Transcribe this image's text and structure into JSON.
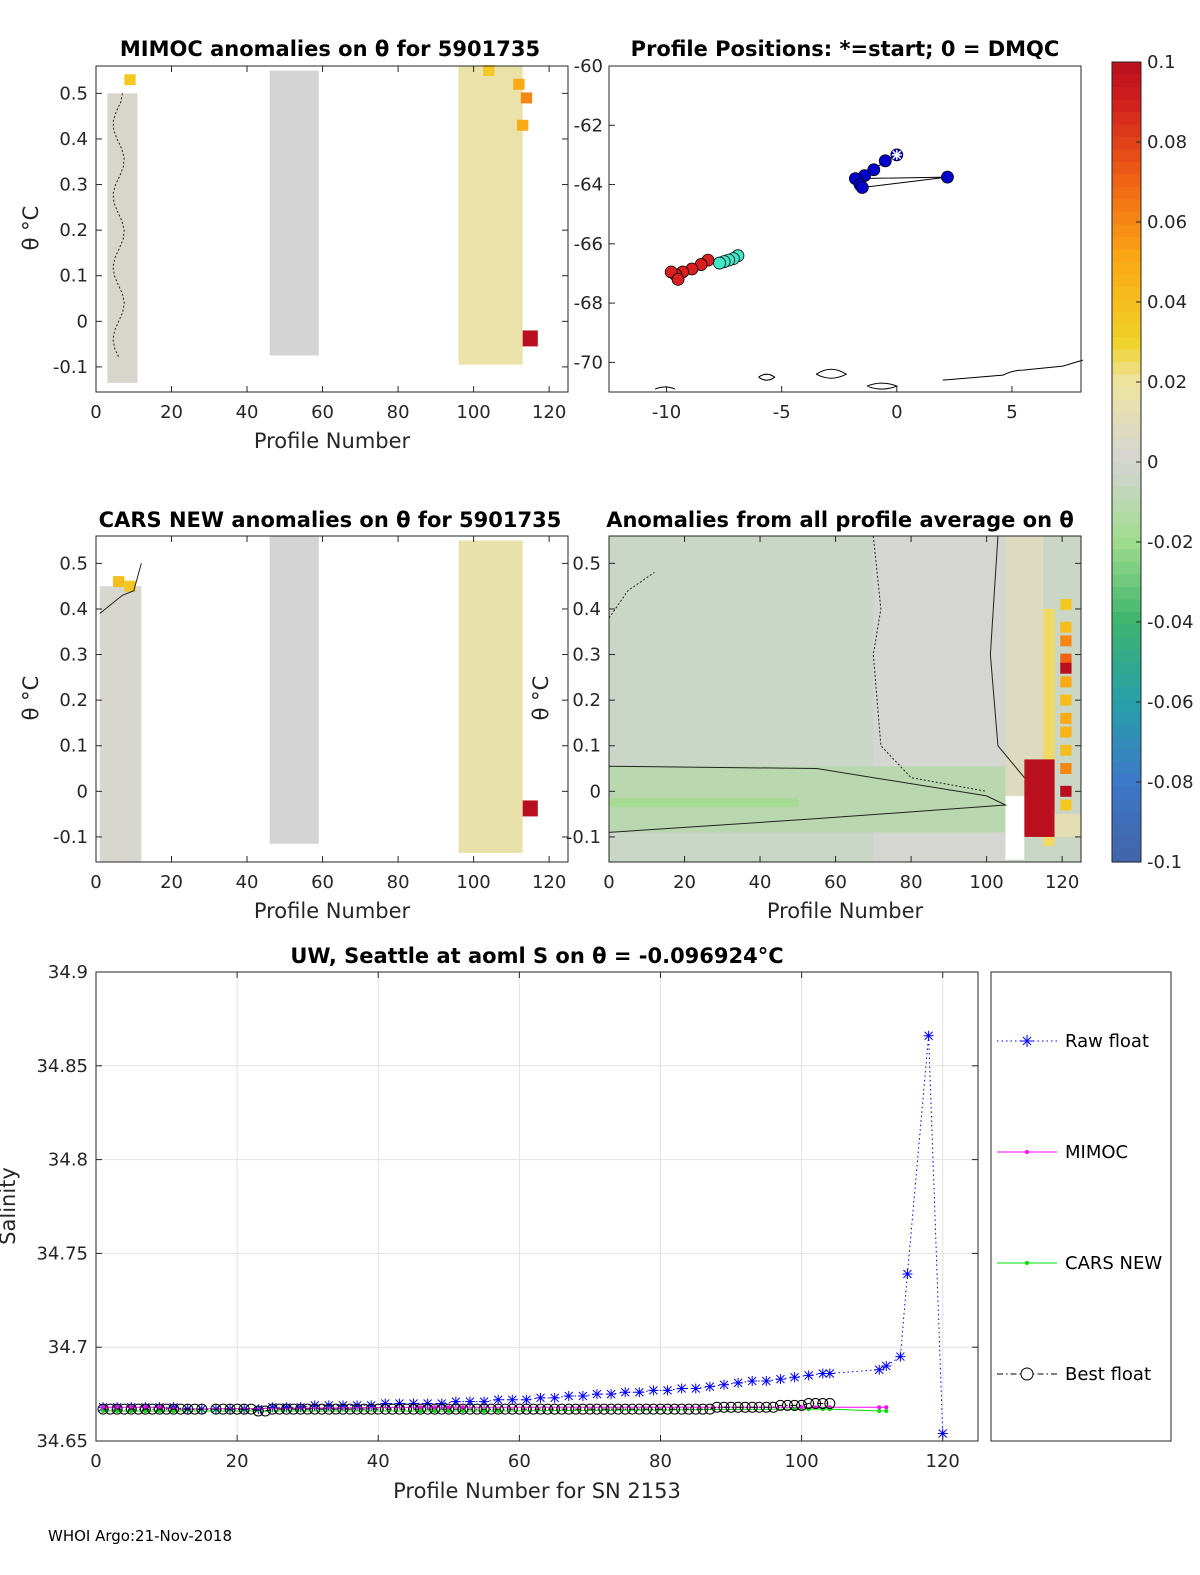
{
  "footer": "WHOI Argo:21-Nov-2018",
  "colors": {
    "neutral_gray": "#d4d4d4",
    "pale_yellow": "#eee6a6",
    "pale_green": "#d9e5c3",
    "green": "#b3e3a3",
    "dark_red": "#b8101e",
    "raw_float": "#0000ff",
    "mimoc": "#ff00ff",
    "cars_new": "#00dd00",
    "best_float": "#000000"
  },
  "chart_data": [
    {
      "id": "mimoc",
      "type": "heatmap",
      "title": "MIMOC anomalies on θ  for 5901735",
      "xlabel": "Profile Number",
      "ylabel": "θ °C",
      "xlim": [
        0,
        125
      ],
      "ylim": [
        -0.155,
        0.56
      ],
      "xticks": [
        "0",
        "20",
        "40",
        "60",
        "80",
        "100",
        "120"
      ],
      "yticks": [
        "-0.1",
        "0",
        "0.1",
        "0.2",
        "0.3",
        "0.4",
        "0.5"
      ],
      "xtick_values": [
        0,
        20,
        40,
        60,
        80,
        100,
        120
      ],
      "ytick_values": [
        -0.1,
        0,
        0.1,
        0.2,
        0.3,
        0.4,
        0.5
      ],
      "regions": [
        {
          "x": [
            3,
            11
          ],
          "y": [
            -0.135,
            0.5
          ],
          "v": 0.003
        },
        {
          "x": [
            46,
            59
          ],
          "y": [
            -0.075,
            0.55
          ],
          "v": 0.0
        },
        {
          "x": [
            96,
            113
          ],
          "y": [
            -0.095,
            0.56
          ],
          "v": 0.017
        },
        {
          "x": [
            113,
            117
          ],
          "y": [
            -0.055,
            -0.02
          ],
          "v": 0.1
        }
      ],
      "hot_cells": [
        {
          "x": 112,
          "y": 0.52,
          "v": 0.05
        },
        {
          "x": 114,
          "y": 0.49,
          "v": 0.06
        },
        {
          "x": 113,
          "y": 0.43,
          "v": 0.05
        },
        {
          "x": 104,
          "y": 0.55,
          "v": 0.035
        },
        {
          "x": 9,
          "y": 0.53,
          "v": 0.035
        }
      ]
    },
    {
      "id": "positions",
      "type": "scatter",
      "title": "Profile Positions: *=start; 0 = DMQC",
      "xlim": [
        -12.5,
        8
      ],
      "ylim": [
        -71,
        -60
      ],
      "xticks": [
        "-10",
        "-5",
        "0",
        "5"
      ],
      "yticks": [
        "-60",
        "-62",
        "-64",
        "-66",
        "-68",
        "-70"
      ],
      "xtick_values": [
        -10,
        -5,
        0,
        5
      ],
      "ytick_values": [
        -60,
        -62,
        -64,
        -66,
        -68,
        -70
      ],
      "clusters": [
        {
          "color": "#0000cc",
          "points": [
            [
              0,
              -63.0
            ],
            [
              -0.5,
              -63.2
            ],
            [
              -1.0,
              -63.5
            ],
            [
              -1.4,
              -63.7
            ],
            [
              -1.8,
              -63.8
            ],
            [
              -1.6,
              -64.0
            ],
            [
              -1.5,
              -64.1
            ],
            [
              2.2,
              -63.75
            ]
          ]
        },
        {
          "color": "#44e6c8",
          "points": [
            [
              -6.9,
              -66.4
            ],
            [
              -7.1,
              -66.5
            ],
            [
              -7.3,
              -66.55
            ],
            [
              -7.5,
              -66.6
            ],
            [
              -7.7,
              -66.65
            ]
          ]
        },
        {
          "color": "#d82020",
          "points": [
            [
              -8.2,
              -66.55
            ],
            [
              -8.5,
              -66.7
            ],
            [
              -8.9,
              -66.85
            ],
            [
              -9.3,
              -66.95
            ],
            [
              -9.6,
              -67.05
            ],
            [
              -9.8,
              -66.95
            ],
            [
              -9.5,
              -67.2
            ]
          ]
        }
      ]
    },
    {
      "id": "colorbar",
      "type": "heatmap",
      "ticks": [
        "0.1",
        "0.08",
        "0.06",
        "0.04",
        "0.02",
        "0",
        "-0.02",
        "-0.04",
        "-0.06",
        "-0.08",
        "-0.1"
      ],
      "tick_values": [
        0.1,
        0.08,
        0.06,
        0.04,
        0.02,
        0,
        -0.02,
        -0.04,
        -0.06,
        -0.08,
        -0.1
      ],
      "range": [
        -0.1,
        0.1
      ]
    },
    {
      "id": "cars",
      "type": "heatmap",
      "title": "CARS NEW anomalies on θ for 5901735",
      "xlabel": "Profile Number",
      "ylabel": "θ °C",
      "xlim": [
        0,
        125
      ],
      "ylim": [
        -0.155,
        0.56
      ],
      "xticks": [
        "0",
        "20",
        "40",
        "60",
        "80",
        "100",
        "120"
      ],
      "yticks": [
        "-0.1",
        "0",
        "0.1",
        "0.2",
        "0.3",
        "0.4",
        "0.5"
      ],
      "xtick_values": [
        0,
        20,
        40,
        60,
        80,
        100,
        120
      ],
      "ytick_values": [
        -0.1,
        0,
        0.1,
        0.2,
        0.3,
        0.4,
        0.5
      ],
      "regions": [
        {
          "x": [
            1,
            12
          ],
          "y": [
            -0.155,
            0.45
          ],
          "v": 0.002
        },
        {
          "x": [
            46,
            59
          ],
          "y": [
            -0.115,
            0.56
          ],
          "v": 0.0
        },
        {
          "x": [
            96,
            113
          ],
          "y": [
            -0.135,
            0.55
          ],
          "v": 0.016
        },
        {
          "x": [
            113,
            117
          ],
          "y": [
            -0.055,
            -0.02
          ],
          "v": 0.1
        }
      ],
      "hot_cells": [
        {
          "x": 6,
          "y": 0.46,
          "v": 0.04
        },
        {
          "x": 9,
          "y": 0.45,
          "v": 0.035
        }
      ]
    },
    {
      "id": "allprofile",
      "type": "heatmap",
      "title": "Anomalies from all profile average on θ",
      "xlabel": "Profile Number",
      "ylabel": "θ °C",
      "xlim": [
        0,
        125
      ],
      "ylim": [
        -0.155,
        0.56
      ],
      "xticks": [
        "0",
        "20",
        "40",
        "60",
        "80",
        "100",
        "120"
      ],
      "yticks": [
        "-0.1",
        "0",
        "0.1",
        "0.2",
        "0.3",
        "0.4",
        "0.5"
      ],
      "xtick_values": [
        0,
        20,
        40,
        60,
        80,
        100,
        120
      ],
      "ytick_values": [
        -0.1,
        0,
        0.1,
        0.2,
        0.3,
        0.4,
        0.5
      ],
      "regions": [
        {
          "x": [
            0,
            125
          ],
          "y": [
            -0.155,
            0.56
          ],
          "v": -0.004
        },
        {
          "x": [
            70,
            105
          ],
          "y": [
            -0.155,
            0.56
          ],
          "v": 0.001
        },
        {
          "x": [
            105,
            115
          ],
          "y": [
            -0.1,
            0.56
          ],
          "v": 0.008
        },
        {
          "x": [
            115,
            118
          ],
          "y": [
            -0.12,
            0.4
          ],
          "v": 0.025
        },
        {
          "x": [
            0,
            105
          ],
          "y": [
            -0.09,
            0.055
          ],
          "v": -0.01
        },
        {
          "x": [
            0,
            50
          ],
          "y": [
            -0.035,
            -0.015
          ],
          "v": -0.018
        },
        {
          "x": [
            105,
            110
          ],
          "y": [
            -0.15,
            -0.01
          ],
          "v": null
        },
        {
          "x": [
            110,
            118
          ],
          "y": [
            -0.1,
            0.07
          ],
          "v": 0.1
        },
        {
          "x": [
            118,
            125
          ],
          "y": [
            -0.1,
            -0.05
          ],
          "v": 0.012
        }
      ],
      "hot_cells": [
        {
          "x": 121,
          "y": 0.41,
          "v": 0.035
        },
        {
          "x": 121,
          "y": 0.36,
          "v": 0.04
        },
        {
          "x": 121,
          "y": 0.33,
          "v": 0.06
        },
        {
          "x": 121,
          "y": 0.29,
          "v": 0.07
        },
        {
          "x": 121,
          "y": 0.27,
          "v": 0.1
        },
        {
          "x": 121,
          "y": 0.24,
          "v": 0.05
        },
        {
          "x": 121,
          "y": 0.2,
          "v": 0.04
        },
        {
          "x": 121,
          "y": 0.16,
          "v": 0.05
        },
        {
          "x": 121,
          "y": 0.13,
          "v": 0.045
        },
        {
          "x": 121,
          "y": 0.09,
          "v": 0.04
        },
        {
          "x": 121,
          "y": 0.05,
          "v": 0.06
        },
        {
          "x": 121,
          "y": 0.0,
          "v": 0.1
        },
        {
          "x": 121,
          "y": -0.03,
          "v": 0.035
        }
      ]
    },
    {
      "id": "salinity",
      "type": "line",
      "title": "UW, Seattle at aoml S on θ = -0.096924°C",
      "xlabel": "Profile Number for SN 2153",
      "ylabel": "Salinity",
      "xlim": [
        0,
        125
      ],
      "ylim": [
        34.65,
        34.9
      ],
      "xticks": [
        "0",
        "20",
        "40",
        "60",
        "80",
        "100",
        "120"
      ],
      "yticks": [
        "34.65",
        "34.7",
        "34.75",
        "34.8",
        "34.85",
        "34.9"
      ],
      "xtick_values": [
        0,
        20,
        40,
        60,
        80,
        100,
        120
      ],
      "ytick_values": [
        34.65,
        34.7,
        34.75,
        34.8,
        34.85,
        34.9
      ],
      "grid": true,
      "legend_position": "outside-right",
      "series": [
        {
          "name": "Raw float",
          "marker": "asterisk",
          "style": "dotted",
          "x": [
            1,
            3,
            5,
            7,
            9,
            11,
            13,
            15,
            17,
            19,
            21,
            23,
            25,
            27,
            29,
            31,
            33,
            35,
            37,
            39,
            41,
            43,
            45,
            47,
            49,
            51,
            53,
            55,
            57,
            59,
            61,
            63,
            65,
            67,
            69,
            71,
            73,
            75,
            77,
            79,
            81,
            83,
            85,
            87,
            89,
            91,
            93,
            95,
            97,
            99,
            101,
            103,
            104,
            111,
            112,
            114,
            115,
            118,
            120
          ],
          "y": [
            34.668,
            34.668,
            34.668,
            34.668,
            34.668,
            34.668,
            34.667,
            34.667,
            34.667,
            34.667,
            34.667,
            34.667,
            34.668,
            34.668,
            34.668,
            34.669,
            34.669,
            34.669,
            34.669,
            34.669,
            34.67,
            34.67,
            34.67,
            34.67,
            34.67,
            34.671,
            34.671,
            34.671,
            34.672,
            34.672,
            34.672,
            34.673,
            34.673,
            34.674,
            34.674,
            34.675,
            34.675,
            34.676,
            34.676,
            34.677,
            34.677,
            34.678,
            34.678,
            34.679,
            34.68,
            34.681,
            34.682,
            34.682,
            34.683,
            34.684,
            34.685,
            34.686,
            34.686,
            34.688,
            34.69,
            34.695,
            34.739,
            34.866,
            34.654
          ]
        },
        {
          "name": "MIMOC",
          "marker": "dot",
          "style": "solid",
          "x": [
            1,
            3,
            5,
            7,
            9,
            11,
            46,
            48,
            50,
            52,
            100,
            102,
            104,
            111,
            112
          ],
          "y": [
            34.668,
            34.668,
            34.668,
            34.668,
            34.668,
            34.667,
            34.668,
            34.668,
            34.668,
            34.668,
            34.668,
            34.668,
            34.668,
            34.668,
            34.668
          ]
        },
        {
          "name": "CARS NEW",
          "marker": "dot",
          "style": "solid",
          "x": [
            1,
            3,
            5,
            7,
            9,
            11,
            46,
            48,
            50,
            52,
            55,
            57,
            99,
            101,
            103,
            104,
            111,
            112
          ],
          "y": [
            34.666,
            34.666,
            34.666,
            34.666,
            34.666,
            34.666,
            34.666,
            34.666,
            34.666,
            34.666,
            34.666,
            34.666,
            34.667,
            34.667,
            34.667,
            34.667,
            34.666,
            34.666
          ]
        },
        {
          "name": "Best float",
          "marker": "circle",
          "style": "dashdot",
          "x": [
            1,
            2,
            3,
            4,
            5,
            6,
            7,
            8,
            9,
            10,
            11,
            12,
            13,
            14,
            15,
            17,
            18,
            19,
            20,
            21,
            22,
            23,
            24,
            25,
            26,
            27,
            28,
            29,
            30,
            31,
            32,
            33,
            34,
            35,
            36,
            37,
            38,
            39,
            40,
            41,
            42,
            43,
            44,
            45,
            46,
            47,
            48,
            49,
            50,
            51,
            52,
            53,
            54,
            55,
            56,
            57,
            58,
            59,
            60,
            61,
            62,
            63,
            64,
            65,
            66,
            67,
            68,
            69,
            70,
            71,
            72,
            73,
            74,
            75,
            76,
            77,
            78,
            79,
            80,
            81,
            82,
            83,
            84,
            85,
            86,
            87,
            88,
            89,
            90,
            91,
            92,
            93,
            94,
            95,
            96,
            97,
            98,
            99,
            100,
            101,
            102,
            103,
            104
          ],
          "y": [
            34.667,
            34.667,
            34.667,
            34.667,
            34.667,
            34.667,
            34.667,
            34.667,
            34.667,
            34.667,
            34.667,
            34.667,
            34.667,
            34.667,
            34.667,
            34.667,
            34.667,
            34.667,
            34.667,
            34.667,
            34.667,
            34.666,
            34.666,
            34.667,
            34.667,
            34.667,
            34.667,
            34.667,
            34.667,
            34.667,
            34.667,
            34.667,
            34.667,
            34.667,
            34.667,
            34.667,
            34.667,
            34.667,
            34.667,
            34.667,
            34.667,
            34.667,
            34.667,
            34.667,
            34.667,
            34.667,
            34.667,
            34.667,
            34.667,
            34.667,
            34.667,
            34.667,
            34.667,
            34.667,
            34.667,
            34.667,
            34.667,
            34.667,
            34.667,
            34.667,
            34.667,
            34.667,
            34.667,
            34.667,
            34.667,
            34.667,
            34.667,
            34.667,
            34.667,
            34.667,
            34.667,
            34.667,
            34.667,
            34.667,
            34.667,
            34.667,
            34.667,
            34.667,
            34.667,
            34.667,
            34.667,
            34.667,
            34.667,
            34.667,
            34.667,
            34.667,
            34.668,
            34.668,
            34.668,
            34.668,
            34.668,
            34.668,
            34.668,
            34.668,
            34.668,
            34.669,
            34.669,
            34.669,
            34.669,
            34.67,
            34.67,
            34.67,
            34.67
          ]
        }
      ]
    }
  ]
}
